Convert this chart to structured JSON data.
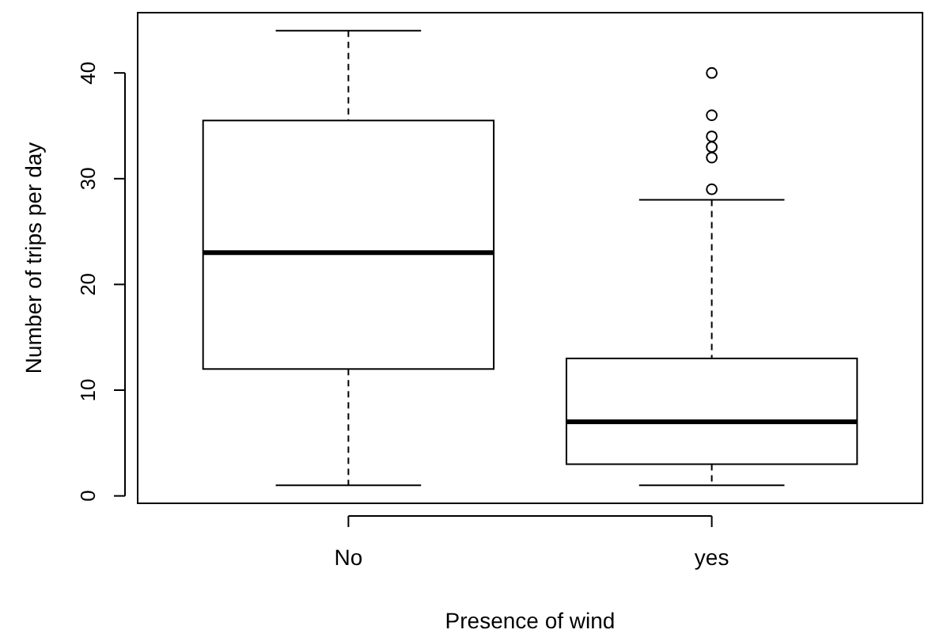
{
  "chart_data": {
    "type": "box",
    "xlabel": "Presence of wind",
    "ylabel": "Number of trips per day",
    "categories": [
      "No",
      "yes"
    ],
    "boxes": [
      {
        "low": 1,
        "q1": 12,
        "median": 23,
        "q3": 35.5,
        "high": 44
      },
      {
        "low": 1,
        "q1": 3,
        "median": 7,
        "q3": 13,
        "high": 28,
        "outliers": [
          29,
          32,
          33,
          34,
          36,
          40
        ]
      }
    ],
    "ylim": [
      -0.7,
      45.7
    ],
    "yticks": [
      0,
      10,
      20,
      30,
      40
    ],
    "grid": false
  }
}
